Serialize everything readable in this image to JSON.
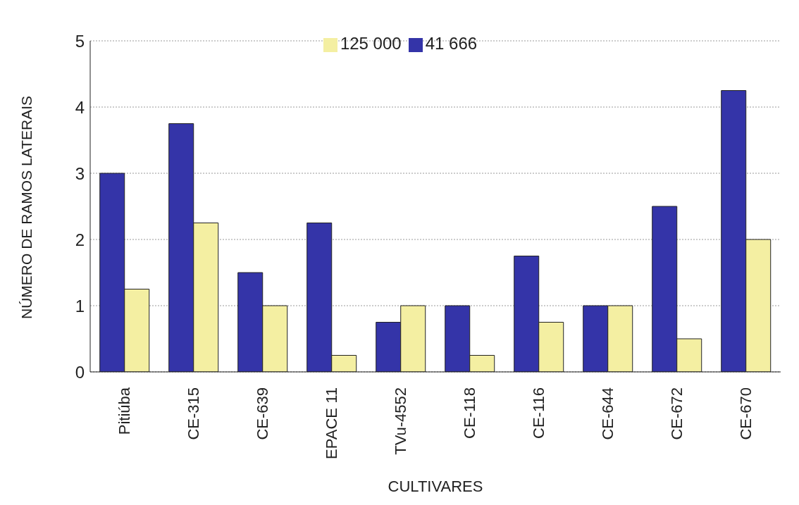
{
  "chart_data": {
    "type": "bar",
    "xlabel": "CULTIVARES",
    "ylabel": "NÚMERO DE RAMOS LATERAIS",
    "categories": [
      "Pitiúba",
      "CE-315",
      "CE-639",
      "EPACE 11",
      "TVu-4552",
      "CE-118",
      "CE-116",
      "CE-644",
      "CE-672",
      "CE-670"
    ],
    "series": [
      {
        "name": "41 666",
        "color": "#3434a8",
        "values": [
          3,
          3.75,
          1.5,
          2.25,
          0.75,
          1,
          1.75,
          1,
          2.5,
          4.25
        ]
      },
      {
        "name": "125 000",
        "color": "#f4efa2",
        "values": [
          1.25,
          2.25,
          1,
          0.25,
          1,
          0.25,
          0.75,
          1,
          0.5,
          2
        ]
      }
    ],
    "ylim": [
      0,
      5
    ],
    "yticks": [
      0,
      1,
      2,
      3,
      4,
      5
    ],
    "grid": "y",
    "legend": "top"
  }
}
